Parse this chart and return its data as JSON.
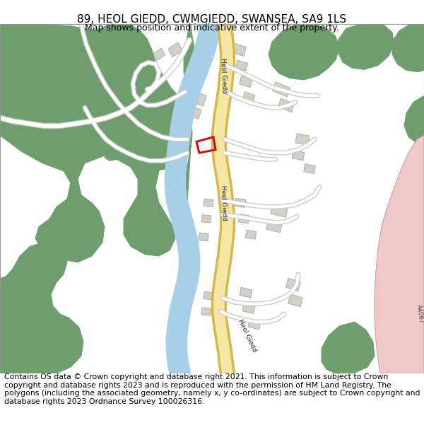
{
  "title": "89, HEOL GIEDD, CWMGIEDD, SWANSEA, SA9 1LS",
  "subtitle": "Map shows position and indicative extent of the property.",
  "footer": "Contains OS data © Crown copyright and database right 2021. This information is subject to Crown copyright and database rights 2023 and is reproduced with the permission of HM Land Registry. The polygons (including the associated geometry, namely x, y co-ordinates) are subject to Crown copyright and database rights 2023 Ordnance Survey 100026316.",
  "green": "#6e9e6e",
  "road_yellow_fill": "#f5e6a3",
  "road_yellow_border": "#d4b84a",
  "river_blue": "#a8cfe8",
  "building_gray": "#d3d0c8",
  "building_outline": "#b0ada8",
  "road_white": "#ffffff",
  "road_outline": "#cccccc",
  "highlight_red": "#cc1111",
  "pink_road": "#f0c8c8",
  "pink_border": "#d4a0a0",
  "text_dark": "#333333",
  "title_fontsize": 11,
  "subtitle_fontsize": 9,
  "footer_fontsize": 7.8
}
